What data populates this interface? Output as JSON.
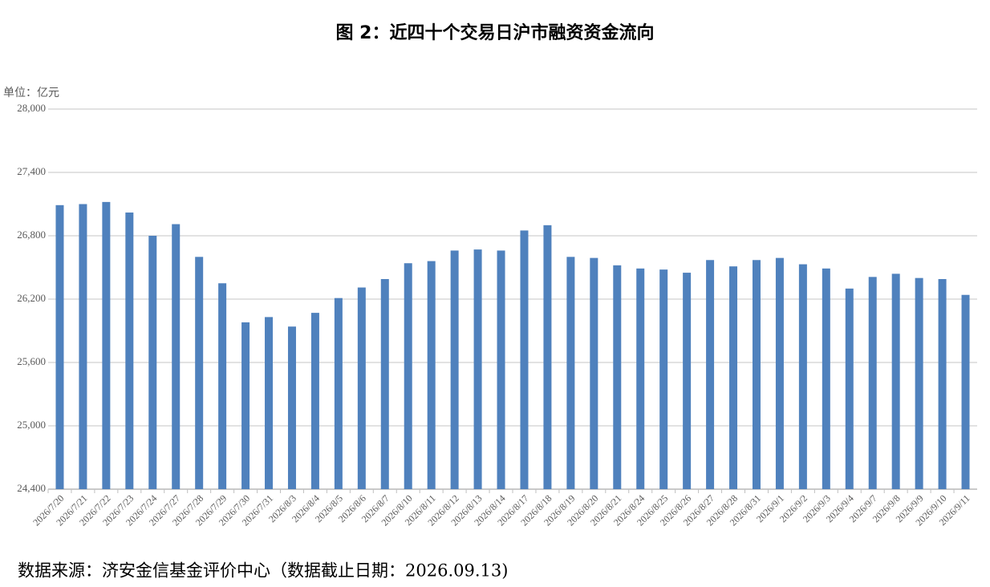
{
  "chart_data": {
    "type": "bar",
    "title": "图 2：近四十个交易日沪市融资资金流向",
    "unit_label": "单位：亿元",
    "source": "数据来源：济安金信基金评价中心（数据截止日期：2026.09.13)",
    "categories": [
      "2026/7/20",
      "2026/7/21",
      "2026/7/22",
      "2026/7/23",
      "2026/7/24",
      "2026/7/27",
      "2026/7/28",
      "2026/7/29",
      "2026/7/30",
      "2026/7/31",
      "2026/8/3",
      "2026/8/4",
      "2026/8/5",
      "2026/8/6",
      "2026/8/7",
      "2026/8/10",
      "2026/8/11",
      "2026/8/12",
      "2026/8/13",
      "2026/8/14",
      "2026/8/17",
      "2026/8/18",
      "2026/8/19",
      "2026/8/20",
      "2026/8/21",
      "2026/8/24",
      "2026/8/25",
      "2026/8/26",
      "2026/8/27",
      "2026/8/28",
      "2026/8/31",
      "2026/9/1",
      "2026/9/2",
      "2026/9/3",
      "2026/9/4",
      "2026/9/7",
      "2026/9/8",
      "2026/9/9",
      "2026/9/10",
      "2026/9/11"
    ],
    "values": [
      27090,
      27100,
      27120,
      27020,
      26800,
      26910,
      26600,
      26350,
      25980,
      26030,
      25940,
      26070,
      26210,
      26310,
      26390,
      26540,
      26560,
      26660,
      26670,
      26660,
      26850,
      26900,
      26600,
      26590,
      26520,
      26490,
      26480,
      26450,
      26570,
      26510,
      26570,
      26590,
      26530,
      26490,
      26300,
      26410,
      26440,
      26400,
      26390,
      26240
    ],
    "color": "#4f81bd",
    "ylim": [
      24400,
      28000
    ],
    "yticks": [
      {
        "value": 24400,
        "label": "24,400"
      },
      {
        "value": 25000,
        "label": "25,000"
      },
      {
        "value": 25600,
        "label": "25,600"
      },
      {
        "value": 26200,
        "label": "26,200"
      },
      {
        "value": 26800,
        "label": "26,800"
      },
      {
        "value": 27400,
        "label": "27,400"
      },
      {
        "value": 28000,
        "label": "28,000"
      }
    ],
    "grid": true
  }
}
